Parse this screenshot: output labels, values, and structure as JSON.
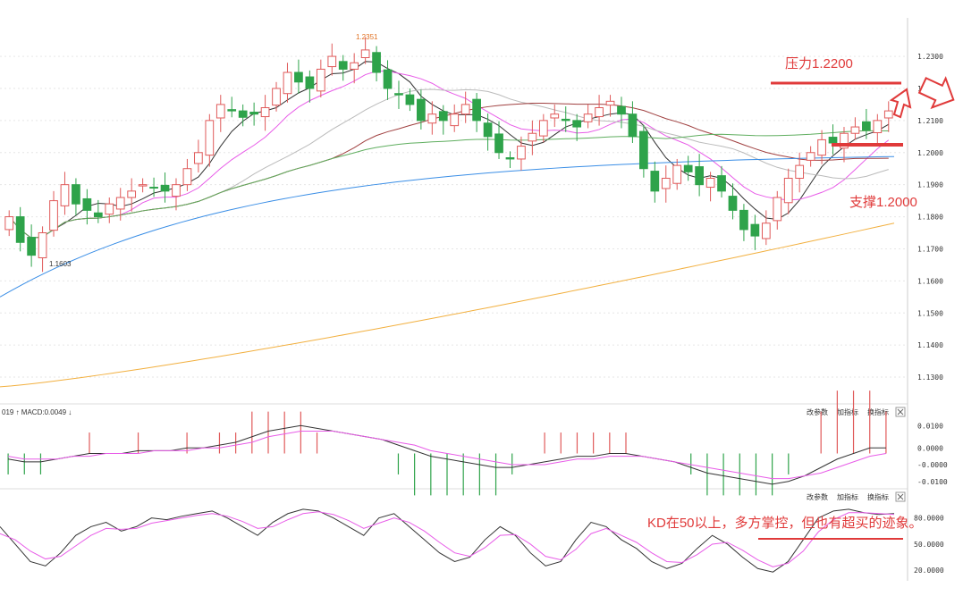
{
  "colors": {
    "up": "#e05a5a",
    "down": "#2ea34a",
    "resist": "#e03a3a"
  },
  "icons": {
    "arrow_up": "hollow-arrow-icon",
    "arrow_right": "hollow-arrow-icon"
  },
  "chart_data": [
    {
      "type": "candlestick",
      "yticks": [
        "1.2300",
        "1.2200",
        "1.2100",
        "1.2000",
        "1.1900",
        "1.1800",
        "1.1700",
        "1.1600",
        "1.1500",
        "1.1400",
        "1.1300"
      ],
      "ylim": [
        1.125,
        1.242
      ],
      "high_label": "1.2351",
      "low_label": "1.1603",
      "closes": [
        1.18,
        1.172,
        1.168,
        1.175,
        1.185,
        1.19,
        1.184,
        1.182,
        1.18,
        1.184,
        1.186,
        1.188,
        1.19,
        1.189,
        1.188,
        1.19,
        1.195,
        1.2,
        1.21,
        1.215,
        1.213,
        1.211,
        1.212,
        1.214,
        1.22,
        1.225,
        1.222,
        1.22,
        1.226,
        1.23,
        1.226,
        1.228,
        1.232,
        1.225,
        1.22,
        1.218,
        1.215,
        1.21,
        1.212,
        1.21,
        1.212,
        1.215,
        1.21,
        1.205,
        1.2,
        1.198,
        1.202,
        1.206,
        1.21,
        1.212,
        1.21,
        1.208,
        1.212,
        1.214,
        1.216,
        1.212,
        1.205,
        1.195,
        1.188,
        1.192,
        1.196,
        1.194,
        1.19,
        1.192,
        1.188,
        1.182,
        1.176,
        1.174,
        1.178,
        1.186,
        1.192,
        1.196,
        1.2,
        1.204,
        1.203,
        1.206,
        1.208,
        1.207,
        1.21,
        1.213
      ]
    },
    {
      "type": "line",
      "indicator": "MACD",
      "label": "019 ↑ MACD:0.0049 ↓",
      "yticks": [
        "0.0100",
        "0.0000",
        "-0.0000",
        "-0.0100"
      ],
      "ylim": [
        -0.012,
        0.012
      ],
      "controls": [
        "改参数",
        "加指标",
        "换指标"
      ],
      "macd": [
        -0.002,
        -0.003,
        -0.003,
        -0.002,
        -0.001,
        0.0,
        0.0,
        0.0,
        0.001,
        0.001,
        0.001,
        0.002,
        0.002,
        0.003,
        0.004,
        0.006,
        0.008,
        0.009,
        0.01,
        0.009,
        0.008,
        0.007,
        0.006,
        0.005,
        0.003,
        0.001,
        -0.001,
        -0.002,
        -0.003,
        -0.004,
        -0.005,
        -0.005,
        -0.004,
        -0.003,
        -0.002,
        -0.001,
        -0.001,
        0.0,
        0.0,
        -0.001,
        -0.002,
        -0.003,
        -0.005,
        -0.007,
        -0.008,
        -0.009,
        -0.01,
        -0.011,
        -0.01,
        -0.008,
        -0.005,
        -0.002,
        0.0,
        0.002,
        0.002
      ],
      "signal": [
        -0.001,
        -0.002,
        -0.002,
        -0.002,
        -0.001,
        -0.001,
        0.0,
        0.0,
        0.0,
        0.001,
        0.001,
        0.001,
        0.002,
        0.002,
        0.003,
        0.004,
        0.006,
        0.007,
        0.008,
        0.008,
        0.008,
        0.007,
        0.006,
        0.005,
        0.004,
        0.003,
        0.001,
        0.0,
        -0.001,
        -0.002,
        -0.003,
        -0.004,
        -0.004,
        -0.004,
        -0.003,
        -0.002,
        -0.002,
        -0.001,
        -0.001,
        -0.001,
        -0.002,
        -0.003,
        -0.004,
        -0.005,
        -0.006,
        -0.007,
        -0.008,
        -0.009,
        -0.009,
        -0.008,
        -0.007,
        -0.005,
        -0.003,
        -0.001,
        0.0
      ]
    },
    {
      "type": "line",
      "indicator": "KD",
      "yticks": [
        "80.0000",
        "50.0000",
        "20.0000"
      ],
      "ylim": [
        10,
        95
      ],
      "controls": [
        "改参数",
        "加指标",
        "换指标"
      ],
      "k": [
        70,
        50,
        30,
        25,
        40,
        60,
        70,
        75,
        65,
        70,
        80,
        78,
        82,
        85,
        88,
        80,
        70,
        60,
        75,
        85,
        90,
        88,
        80,
        70,
        60,
        80,
        85,
        70,
        55,
        40,
        30,
        35,
        55,
        70,
        60,
        40,
        25,
        30,
        55,
        75,
        70,
        55,
        45,
        30,
        22,
        28,
        45,
        60,
        50,
        35,
        22,
        18,
        30,
        55,
        80,
        88,
        90,
        86,
        84,
        85
      ],
      "d": [
        62,
        55,
        42,
        33,
        36,
        48,
        60,
        68,
        67,
        68,
        74,
        77,
        80,
        83,
        85,
        82,
        76,
        68,
        70,
        78,
        85,
        87,
        84,
        77,
        68,
        74,
        80,
        75,
        65,
        52,
        40,
        36,
        46,
        60,
        61,
        50,
        36,
        32,
        44,
        62,
        68,
        60,
        52,
        40,
        30,
        29,
        38,
        50,
        52,
        43,
        32,
        24,
        28,
        42,
        64,
        78,
        86,
        86,
        85,
        84
      ]
    }
  ],
  "annotations": {
    "resistance": "压力1.2200",
    "support": "支撑1.2000",
    "kd_note": "KD在50以上，多方掌控，但也有超买的迹象。"
  }
}
